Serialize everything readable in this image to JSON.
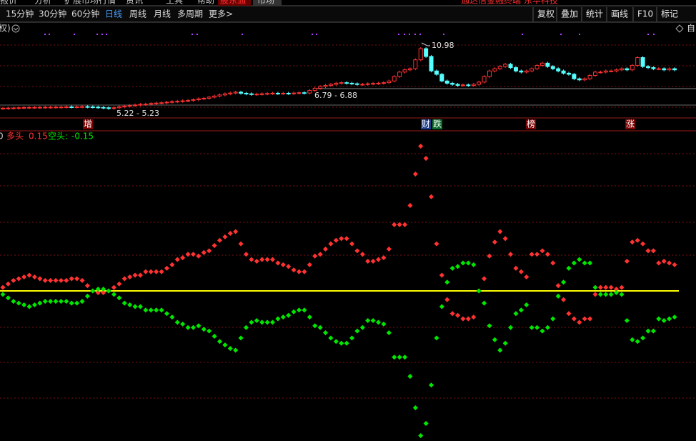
{
  "menu": [
    "报价",
    "分析",
    "扩展市场行情",
    "资讯",
    "工具",
    "帮助",
    "股东通",
    "市场",
    "通达信金融终端 东华科技"
  ],
  "periods": [
    "15分钟",
    "30分钟",
    "60分钟",
    "日线",
    "周线",
    "月线",
    "多周期",
    "更多>"
  ],
  "buttons": [
    "复权",
    "叠加",
    "统计",
    "画线",
    "F10",
    "标记"
  ],
  "panel_prefix": "权)",
  "panel_right": "自",
  "price_panel": {
    "high_label": "10.98",
    "mid_label": "6.79 - 6.88",
    "low_label": "5.22 - 5.23",
    "closes": [
      5.25,
      5.27,
      5.28,
      5.3,
      5.32,
      5.33,
      5.33,
      5.34,
      5.35,
      5.35,
      5.36,
      5.36,
      5.38,
      5.37,
      5.38,
      5.4,
      5.38,
      5.36,
      5.33,
      5.3,
      5.24,
      5.3,
      5.38,
      5.45,
      5.5,
      5.55,
      5.6,
      5.62,
      5.68,
      5.72,
      5.75,
      5.8,
      5.85,
      5.88,
      5.92,
      5.95,
      6.02,
      6.1,
      6.15,
      6.25,
      6.35,
      6.45,
      6.55,
      6.62,
      6.7,
      6.6,
      6.55,
      6.5,
      6.52,
      6.55,
      6.58,
      6.6,
      6.58,
      6.6,
      6.58,
      6.62,
      6.65,
      6.62,
      6.85,
      7.05,
      7.2,
      7.3,
      7.4,
      7.5,
      7.55,
      7.5,
      7.45,
      7.4,
      7.4,
      7.45,
      7.48,
      7.5,
      7.55,
      7.7,
      8.1,
      8.5,
      8.7,
      8.8,
      9.6,
      10.6,
      9.9,
      8.6,
      8.3,
      7.7,
      7.5,
      7.4,
      7.3,
      7.35,
      7.3,
      7.4,
      7.6,
      8.1,
      8.6,
      8.8,
      9.0,
      9.2,
      8.9,
      8.6,
      8.5,
      8.6,
      8.8,
      9.1,
      9.3,
      9.0,
      8.8,
      8.6,
      8.4,
      8.3,
      7.9,
      7.8,
      7.9,
      8.2,
      8.5,
      8.5,
      8.6,
      8.6,
      8.7,
      8.8,
      8.7,
      9.1,
      9.8,
      9.0,
      8.9,
      8.8,
      8.8,
      8.7,
      8.8,
      8.7
    ]
  },
  "events": [
    "增",
    "财",
    "跌",
    "榜",
    "涨"
  ],
  "indicator": {
    "prefix": "0",
    "bull_name": "多头",
    "bull_value": 0.15,
    "bear_name": "空头:",
    "bear_value": -0.15,
    "bull": [
      0.02,
      0.04,
      0.06,
      0.07,
      0.08,
      0.09,
      0.08,
      0.07,
      0.06,
      0.06,
      0.06,
      0.06,
      0.06,
      0.07,
      0.07,
      0.06,
      0.03,
      0.0,
      -0.01,
      -0.01,
      0.0,
      0.02,
      0.04,
      0.07,
      0.08,
      0.09,
      0.09,
      0.11,
      0.11,
      0.11,
      0.11,
      0.13,
      0.15,
      0.18,
      0.19,
      0.21,
      0.21,
      0.2,
      0.22,
      0.23,
      0.26,
      0.29,
      0.31,
      0.33,
      0.34,
      0.27,
      0.21,
      0.18,
      0.17,
      0.18,
      0.18,
      0.18,
      0.16,
      0.15,
      0.14,
      0.12,
      0.11,
      0.11,
      0.15,
      0.2,
      0.21,
      0.24,
      0.27,
      0.29,
      0.3,
      0.3,
      0.27,
      0.23,
      0.21,
      0.17,
      0.17,
      0.18,
      0.19,
      0.24,
      0.38,
      0.38,
      0.38,
      0.49,
      0.67,
      0.83,
      0.76,
      0.54,
      0.27,
      0.09,
      -0.05,
      -0.13,
      -0.14,
      -0.16,
      -0.16,
      -0.15,
      0.0,
      0.07,
      0.2,
      0.28,
      0.34,
      0.3,
      0.21,
      0.13,
      0.11,
      0.08,
      0.21,
      0.21,
      0.23,
      0.21,
      0.16,
      0.03,
      -0.05,
      -0.13,
      -0.16,
      -0.18,
      -0.16,
      -0.16,
      -0.02,
      0.02,
      0.02,
      0.02,
      0.01,
      0.02,
      0.17,
      0.28,
      0.29,
      0.27,
      0.23,
      0.23,
      0.16,
      0.17,
      0.16,
      0.15
    ],
    "bear": [
      -0.02,
      -0.04,
      -0.06,
      -0.07,
      -0.08,
      -0.09,
      -0.08,
      -0.07,
      -0.06,
      -0.06,
      -0.06,
      -0.06,
      -0.06,
      -0.07,
      -0.07,
      -0.06,
      -0.03,
      0.0,
      0.01,
      0.01,
      0.0,
      -0.02,
      -0.04,
      -0.07,
      -0.08,
      -0.09,
      -0.09,
      -0.11,
      -0.11,
      -0.11,
      -0.11,
      -0.13,
      -0.15,
      -0.18,
      -0.19,
      -0.21,
      -0.21,
      -0.2,
      -0.22,
      -0.23,
      -0.26,
      -0.29,
      -0.31,
      -0.33,
      -0.34,
      -0.27,
      -0.21,
      -0.18,
      -0.17,
      -0.18,
      -0.18,
      -0.18,
      -0.16,
      -0.15,
      -0.14,
      -0.12,
      -0.11,
      -0.11,
      -0.15,
      -0.2,
      -0.21,
      -0.24,
      -0.27,
      -0.29,
      -0.3,
      -0.3,
      -0.27,
      -0.23,
      -0.21,
      -0.17,
      -0.17,
      -0.18,
      -0.19,
      -0.24,
      -0.38,
      -0.38,
      -0.38,
      -0.49,
      -0.67,
      -0.83,
      -0.76,
      -0.54,
      -0.27,
      -0.09,
      0.05,
      0.13,
      0.14,
      0.16,
      0.16,
      0.15,
      0.0,
      -0.07,
      -0.2,
      -0.28,
      -0.34,
      -0.3,
      -0.21,
      -0.13,
      -0.11,
      -0.08,
      -0.21,
      -0.21,
      -0.23,
      -0.21,
      -0.16,
      -0.03,
      0.05,
      0.13,
      0.16,
      0.18,
      0.16,
      0.16,
      0.02,
      -0.02,
      -0.02,
      -0.02,
      -0.01,
      -0.02,
      -0.17,
      -0.28,
      -0.29,
      -0.27,
      -0.23,
      -0.23,
      -0.16,
      -0.17,
      -0.16,
      -0.15
    ]
  }
}
